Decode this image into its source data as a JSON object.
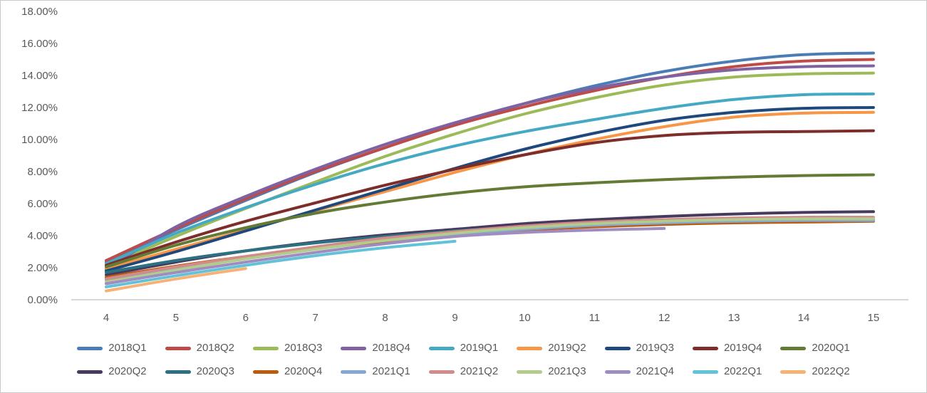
{
  "chart_data": {
    "type": "line",
    "title": "",
    "xlabel": "",
    "ylabel": "",
    "grid": false,
    "legend_position": "bottom",
    "text_color": "#595959",
    "axis_line_color": "#bfbfbf",
    "y_axis": {
      "min": 0,
      "max": 18,
      "step": 2,
      "format": "percent",
      "labels": [
        "18.00%",
        "16.00%",
        "14.00%",
        "12.00%",
        "10.00%",
        "8.00%",
        "6.00%",
        "4.00%",
        "2.00%",
        "0.00%"
      ]
    },
    "x_axis": {
      "ticks": [
        4,
        5,
        6,
        7,
        8,
        9,
        10,
        11,
        12,
        13,
        14,
        15
      ]
    },
    "series": [
      {
        "name": "2018Q1",
        "color": "#4C7CB5",
        "values": [
          2.35,
          4.35,
          6.2,
          7.95,
          9.5,
          10.95,
          12.25,
          13.35,
          14.25,
          14.9,
          15.3,
          15.4
        ]
      },
      {
        "name": "2018Q2",
        "color": "#BE4B48",
        "values": [
          2.45,
          4.45,
          6.3,
          8.0,
          9.5,
          10.9,
          12.05,
          13.05,
          13.9,
          14.55,
          14.9,
          15.0
        ]
      },
      {
        "name": "2018Q3",
        "color": "#9CBB58",
        "values": [
          2.1,
          3.95,
          5.7,
          7.35,
          8.95,
          10.35,
          11.6,
          12.6,
          13.4,
          13.9,
          14.1,
          14.15
        ]
      },
      {
        "name": "2018Q4",
        "color": "#7E62A1",
        "values": [
          1.9,
          4.55,
          6.45,
          8.15,
          9.7,
          11.05,
          12.25,
          13.2,
          13.9,
          14.35,
          14.55,
          14.6
        ]
      },
      {
        "name": "2019Q1",
        "color": "#45A9C3",
        "values": [
          2.25,
          4.15,
          5.75,
          7.2,
          8.5,
          9.6,
          10.5,
          11.25,
          11.95,
          12.5,
          12.8,
          12.85
        ]
      },
      {
        "name": "2019Q2",
        "color": "#F79646",
        "values": [
          1.95,
          3.15,
          4.35,
          5.55,
          6.75,
          7.95,
          9.05,
          10.0,
          10.8,
          11.4,
          11.65,
          11.7
        ]
      },
      {
        "name": "2019Q3",
        "color": "#1F497D",
        "values": [
          1.8,
          3.0,
          4.3,
          5.6,
          6.9,
          8.2,
          9.4,
          10.4,
          11.2,
          11.7,
          11.95,
          12.0
        ]
      },
      {
        "name": "2019Q4",
        "color": "#7D2E2B",
        "values": [
          2.15,
          3.6,
          4.9,
          6.05,
          7.15,
          8.15,
          9.05,
          9.8,
          10.25,
          10.45,
          10.5,
          10.55
        ]
      },
      {
        "name": "2020Q1",
        "color": "#647B35",
        "values": [
          2.05,
          3.4,
          4.5,
          5.4,
          6.1,
          6.65,
          7.05,
          7.3,
          7.5,
          7.65,
          7.75,
          7.8
        ]
      },
      {
        "name": "2020Q2",
        "color": "#473A5E",
        "values": [
          1.55,
          2.35,
          3.05,
          3.6,
          4.05,
          4.4,
          4.75,
          5.0,
          5.2,
          5.35,
          5.45,
          5.5
        ]
      },
      {
        "name": "2020Q3",
        "color": "#2B7182",
        "values": [
          1.7,
          2.45,
          3.05,
          3.55,
          3.95,
          4.3,
          4.55,
          4.75,
          4.9,
          4.95,
          5.0,
          5.0
        ]
      },
      {
        "name": "2020Q4",
        "color": "#BC5B0B",
        "values": [
          1.4,
          2.1,
          2.7,
          3.2,
          3.65,
          4.05,
          4.35,
          4.55,
          4.7,
          4.8,
          4.85,
          4.9
        ]
      },
      {
        "name": "2021Q1",
        "color": "#84A7D4",
        "values": [
          1.25,
          1.95,
          2.6,
          3.2,
          3.7,
          4.1,
          4.4,
          4.65,
          4.8,
          4.9,
          4.95,
          4.95
        ]
      },
      {
        "name": "2021Q2",
        "color": "#D28B88",
        "values": [
          1.3,
          2.05,
          2.7,
          3.3,
          3.85,
          4.25,
          4.6,
          4.85,
          5.0,
          5.1,
          5.15,
          5.15
        ]
      },
      {
        "name": "2021Q3",
        "color": "#B3CC8E",
        "values": [
          1.1,
          1.85,
          2.55,
          3.15,
          3.7,
          4.15,
          4.5,
          4.75,
          4.9,
          5.0,
          5.05,
          5.05
        ]
      },
      {
        "name": "2021Q4",
        "color": "#9F8CC1",
        "values": [
          1.0,
          1.7,
          2.35,
          2.95,
          3.5,
          3.95,
          4.2,
          4.35,
          4.45
        ]
      },
      {
        "name": "2022Q1",
        "color": "#62C2D8",
        "values": [
          0.8,
          1.5,
          2.15,
          2.75,
          3.25,
          3.65
        ]
      },
      {
        "name": "2022Q2",
        "color": "#F8B175",
        "values": [
          0.55,
          1.3,
          1.95
        ]
      }
    ],
    "legend": {
      "rows": [
        [
          "2018Q1",
          "2018Q2",
          "2018Q3",
          "2018Q4",
          "2019Q1",
          "2019Q2",
          "2019Q3",
          "2019Q4",
          "2020Q1"
        ],
        [
          "2020Q2",
          "2020Q3",
          "2020Q4",
          "2021Q1",
          "2021Q2",
          "2021Q3",
          "2021Q4",
          "2022Q1",
          "2022Q2"
        ]
      ]
    }
  }
}
